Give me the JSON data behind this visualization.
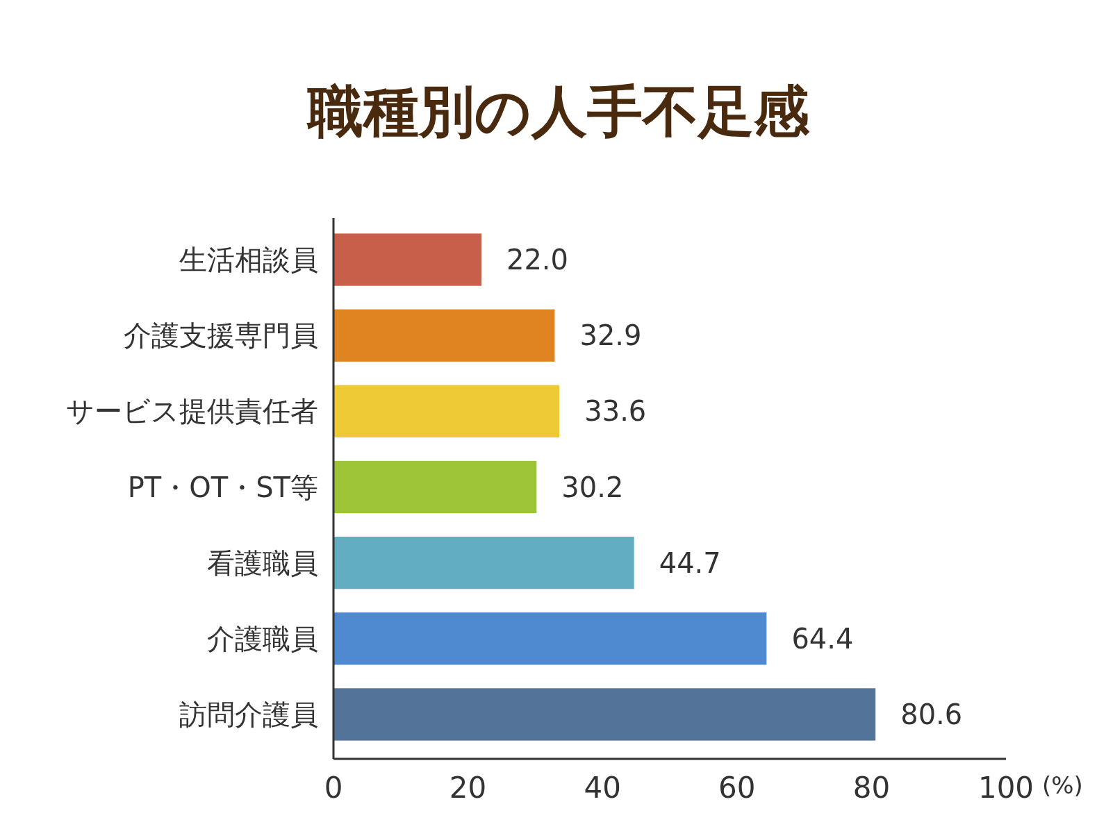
{
  "chart_data": {
    "type": "bar",
    "orientation": "horizontal",
    "title": "職種別の人手不足感",
    "xlabel": "(%)",
    "categories": [
      "生活相談員",
      "介護支援専門員",
      "サービス提供責任者",
      "PT・OT・ST等",
      "看護職員",
      "介護職員",
      "訪問介護員"
    ],
    "values": [
      22.0,
      32.9,
      33.6,
      30.2,
      44.7,
      64.4,
      80.6
    ],
    "colors": [
      "#c75f4b",
      "#e08321",
      "#ecc935",
      "#9dc437",
      "#63adc3",
      "#4f89cf",
      "#537399"
    ],
    "value_labels": [
      "22.0",
      "32.9",
      "33.6",
      "30.2",
      "44.7",
      "64.4",
      "80.6"
    ],
    "xlim": [
      0,
      100
    ],
    "xticks": [
      0,
      20,
      40,
      60,
      80,
      100
    ],
    "grid": false
  }
}
